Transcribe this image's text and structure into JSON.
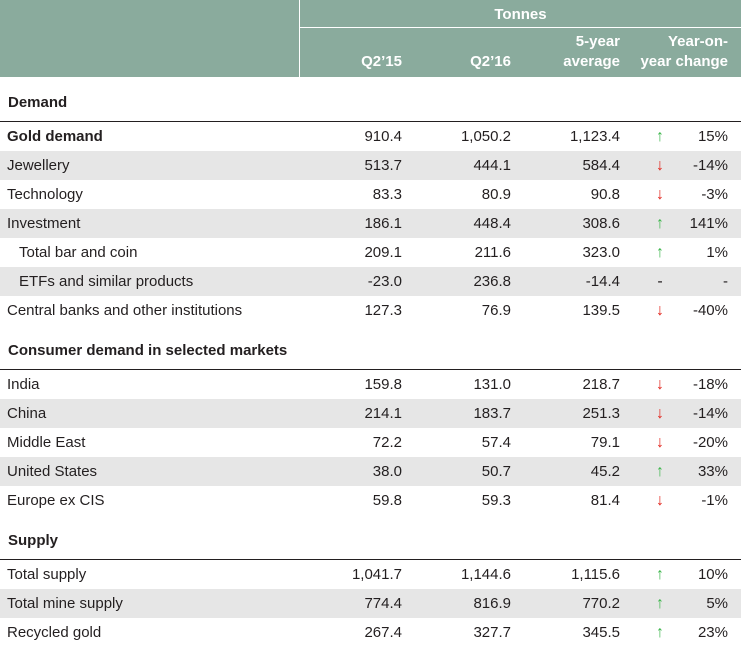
{
  "header": {
    "unit": "Tonnes",
    "columns": [
      "Q2’15",
      "Q2’16",
      "5-year average",
      "Year-on-year change"
    ],
    "col3_line1": "5-year",
    "col3_line2": "average",
    "col4_line1": "Year-on-",
    "col4_line2": "year change"
  },
  "colors": {
    "header_bg": "#8aab9d",
    "row_shade": "#e6e6e6",
    "up": "#3bb54a",
    "down": "#e2231a"
  },
  "sections": [
    {
      "title": "Demand",
      "rows": [
        {
          "label": "Gold demand",
          "bold": true,
          "q2_15": "910.4",
          "q2_16": "1,050.2",
          "avg5": "1,123.4",
          "trend": "up",
          "yoy": "15%"
        },
        {
          "label": "Jewellery",
          "q2_15": "513.7",
          "q2_16": "444.1",
          "avg5": "584.4",
          "trend": "down",
          "yoy": "-14%"
        },
        {
          "label": "Technology",
          "q2_15": "83.3",
          "q2_16": "80.9",
          "avg5": "90.8",
          "trend": "down",
          "yoy": "-3%"
        },
        {
          "label": "Investment",
          "q2_15": "186.1",
          "q2_16": "448.4",
          "avg5": "308.6",
          "trend": "up",
          "yoy": "141%"
        },
        {
          "label": "Total bar and coin",
          "indent": true,
          "q2_15": "209.1",
          "q2_16": "211.6",
          "avg5": "323.0",
          "trend": "up",
          "yoy": "1%"
        },
        {
          "label": "ETFs and similar products",
          "indent": true,
          "q2_15": "-23.0",
          "q2_16": "236.8",
          "avg5": "-14.4",
          "trend": "flat",
          "yoy": "-"
        },
        {
          "label": "Central banks and other institutions",
          "q2_15": "127.3",
          "q2_16": "76.9",
          "avg5": "139.5",
          "trend": "down",
          "yoy": "-40%"
        }
      ]
    },
    {
      "title": "Consumer demand in selected markets",
      "rows": [
        {
          "label": "India",
          "q2_15": "159.8",
          "q2_16": "131.0",
          "avg5": "218.7",
          "trend": "down",
          "yoy": "-18%"
        },
        {
          "label": "China",
          "q2_15": "214.1",
          "q2_16": "183.7",
          "avg5": "251.3",
          "trend": "down",
          "yoy": "-14%"
        },
        {
          "label": "Middle East",
          "q2_15": "72.2",
          "q2_16": "57.4",
          "avg5": "79.1",
          "trend": "down",
          "yoy": "-20%"
        },
        {
          "label": "United States",
          "q2_15": "38.0",
          "q2_16": "50.7",
          "avg5": "45.2",
          "trend": "up",
          "yoy": "33%"
        },
        {
          "label": "Europe ex CIS",
          "q2_15": "59.8",
          "q2_16": "59.3",
          "avg5": "81.4",
          "trend": "down",
          "yoy": "-1%"
        }
      ]
    },
    {
      "title": "Supply",
      "rows": [
        {
          "label": "Total supply",
          "q2_15": "1,041.7",
          "q2_16": "1,144.6",
          "avg5": "1,115.6",
          "trend": "up",
          "yoy": "10%"
        },
        {
          "label": "Total mine supply",
          "q2_15": "774.4",
          "q2_16": "816.9",
          "avg5": "770.2",
          "trend": "up",
          "yoy": "5%"
        },
        {
          "label": "Recycled gold",
          "q2_15": "267.4",
          "q2_16": "327.7",
          "avg5": "345.5",
          "trend": "up",
          "yoy": "23%"
        }
      ]
    }
  ]
}
